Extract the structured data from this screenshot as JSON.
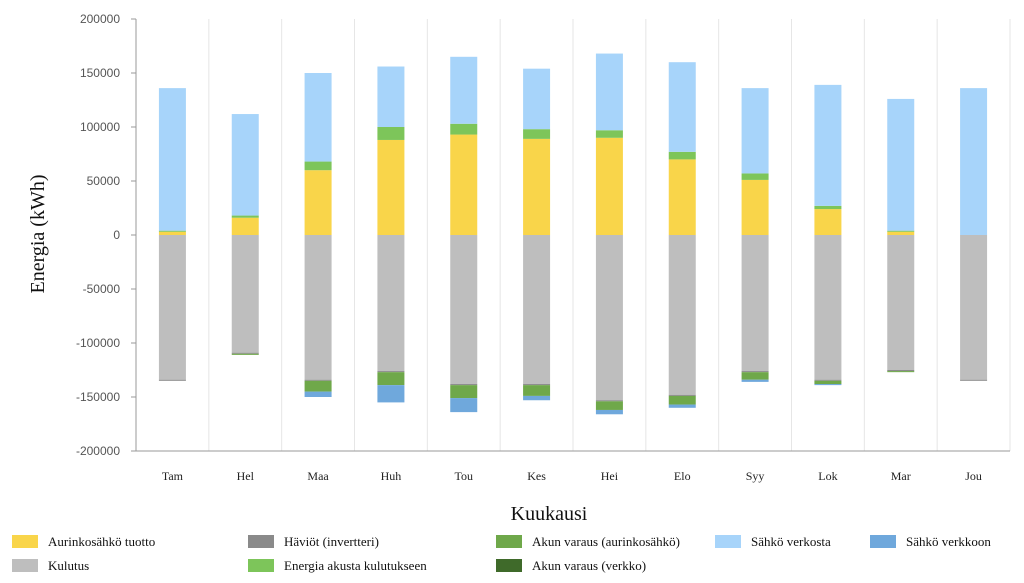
{
  "chart_data": {
    "type": "bar",
    "stacked": true,
    "xlabel": "Kuukausi",
    "ylabel": "Energia (kWh)",
    "ylim": [
      -200000,
      200000
    ],
    "yticks": [
      200000,
      150000,
      100000,
      50000,
      0,
      -50000,
      -100000,
      -150000,
      -200000
    ],
    "ytick_labels": [
      "200000",
      "150000",
      "100000",
      "50000",
      "0",
      "-50000",
      "-100000",
      "-150000",
      "-200000"
    ],
    "grid": "vertical",
    "legend_position": "bottom",
    "categories": [
      "Tam",
      "Hel",
      "Maa",
      "Huh",
      "Tou",
      "Kes",
      "Hei",
      "Elo",
      "Syy",
      "Lok",
      "Mar",
      "Jou"
    ],
    "series": [
      {
        "name": "Aurinkosähkö tuotto",
        "color": "#F9D54A",
        "values": [
          3000,
          16000,
          60000,
          88000,
          93000,
          89000,
          90000,
          70000,
          51000,
          24000,
          3000,
          0
        ]
      },
      {
        "name": "Energia akusta kulutukseen",
        "color": "#7DC55A",
        "values": [
          1000,
          2000,
          8000,
          12000,
          10000,
          9000,
          7000,
          7000,
          6000,
          3000,
          1000,
          0
        ]
      },
      {
        "name": "Sähkö verkosta",
        "color": "#A7D4FA",
        "values": [
          132000,
          94000,
          82000,
          56000,
          62000,
          56000,
          71000,
          83000,
          79000,
          112000,
          122000,
          136000
        ]
      },
      {
        "name": "Kulutus",
        "color": "#BEBEBE",
        "values": [
          -134000,
          -109000,
          -134000,
          -126000,
          -138000,
          -138000,
          -153000,
          -148000,
          -126000,
          -134000,
          -125000,
          -134000
        ]
      },
      {
        "name": "Häviöt (invertteri)",
        "color": "#8A8A8A",
        "values": [
          -1000,
          -1000,
          -1000,
          -1000,
          -1000,
          -1000,
          -1000,
          -1000,
          -1000,
          -1000,
          -1000,
          -1000
        ]
      },
      {
        "name": "Akun varaus (aurinkosähkö)",
        "color": "#6FA84A",
        "values": [
          0,
          -1000,
          -10000,
          -12000,
          -12000,
          -10000,
          -8000,
          -8000,
          -7000,
          -3000,
          -1000,
          0
        ]
      },
      {
        "name": "Akun varaus (verkko)",
        "color": "#3F6A2A",
        "values": [
          0,
          0,
          0,
          0,
          0,
          0,
          0,
          0,
          0,
          0,
          0,
          0
        ]
      },
      {
        "name": "Sähkö verkkoon",
        "color": "#6FA8DC",
        "values": [
          0,
          0,
          -5000,
          -16000,
          -13000,
          -4000,
          -4000,
          -3000,
          -2000,
          -1000,
          0,
          0
        ]
      }
    ],
    "legend": [
      {
        "name": "Aurinkosähkö tuotto",
        "color": "#F9D54A"
      },
      {
        "name": "Kulutus",
        "color": "#BEBEBE"
      },
      {
        "name": "Häviöt (invertteri)",
        "color": "#8A8A8A"
      },
      {
        "name": "Energia akusta kulutukseen",
        "color": "#7DC55A"
      },
      {
        "name": "Akun varaus (aurinkosähkö)",
        "color": "#6FA84A"
      },
      {
        "name": "Akun varaus (verkko)",
        "color": "#3F6A2A"
      },
      {
        "name": "Sähkö verkosta",
        "color": "#A7D4FA"
      },
      {
        "name": "Sähkö verkkoon",
        "color": "#6FA8DC"
      }
    ]
  }
}
